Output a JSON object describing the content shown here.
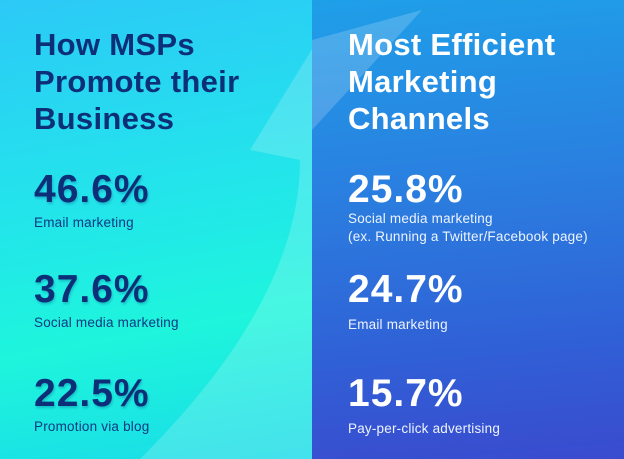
{
  "left": {
    "title_lines": [
      "How MSPs",
      "Promote their",
      "Business"
    ],
    "stats": [
      {
        "value": "46.6%",
        "label": "Email marketing"
      },
      {
        "value": "37.6%",
        "label": "Social media marketing"
      },
      {
        "value": "22.5%",
        "label": "Promotion via blog"
      }
    ]
  },
  "right": {
    "title_lines": [
      "Most Efficient",
      "Marketing",
      "Channels"
    ],
    "stats": [
      {
        "value": "25.8%",
        "label": "Social media marketing",
        "sublabel": "(ex. Running a Twitter/Facebook page)"
      },
      {
        "value": "24.7%",
        "label": "Email marketing"
      },
      {
        "value": "15.7%",
        "label": "Pay-per-click advertising"
      }
    ]
  },
  "colors": {
    "left_accent": "#1ef5dc",
    "right_accent": "#2a7fe0",
    "heading_dark": "#0c2f78",
    "heading_light": "#ffffff"
  }
}
